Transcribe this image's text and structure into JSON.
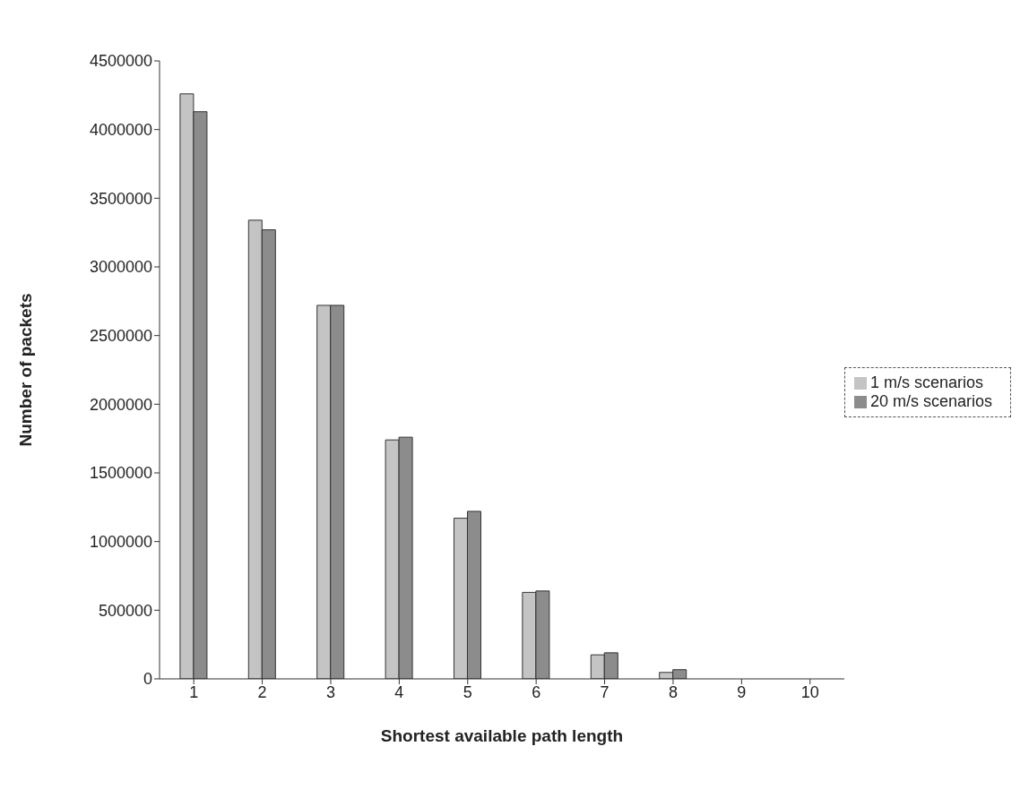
{
  "chart_data": {
    "type": "bar",
    "xlabel": "Shortest available path length",
    "ylabel": "Number of packets",
    "categories": [
      "1",
      "2",
      "3",
      "4",
      "5",
      "6",
      "7",
      "8",
      "9",
      "10"
    ],
    "series": [
      {
        "name": "1 m/s scenarios",
        "color": "#c4c4c4",
        "values": [
          4260000,
          3340000,
          2720000,
          1740000,
          1170000,
          630000,
          175000,
          47000,
          null,
          null
        ]
      },
      {
        "name": "20 m/s scenarios",
        "color": "#8c8c8c",
        "values": [
          4130000,
          3270000,
          2720000,
          1760000,
          1220000,
          640000,
          190000,
          67000,
          null,
          null
        ]
      }
    ],
    "ylim": [
      0,
      4500000
    ],
    "yticks": [
      0,
      500000,
      1000000,
      1500000,
      2000000,
      2500000,
      3000000,
      3500000,
      4000000,
      4500000
    ],
    "grid": false,
    "legend": "right"
  }
}
